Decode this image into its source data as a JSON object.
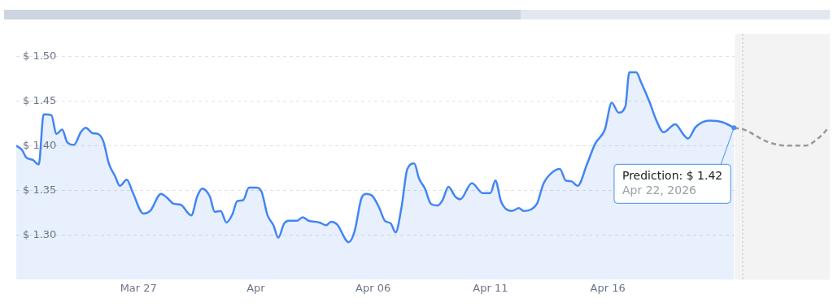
{
  "chart_data": {
    "type": "area",
    "xlim": [
      "2026-03-21T19:00",
      "2026-04-25T11:00"
    ],
    "xticks": [
      {
        "value": "2026-03-27",
        "label": "Mar 27"
      },
      {
        "value": "2026-04-01",
        "label": "Apr"
      },
      {
        "value": "2026-04-06",
        "label": "Apr 06"
      },
      {
        "value": "2026-04-11",
        "label": "Apr 11"
      },
      {
        "value": "2026-04-16",
        "label": "Apr 16"
      }
    ],
    "ylim": [
      1.25,
      1.525
    ],
    "yticks": [
      {
        "value": 1.3,
        "label": "$ 1.30"
      },
      {
        "value": 1.35,
        "label": "$ 1.35"
      },
      {
        "value": 1.4,
        "label": "$ 1.40"
      },
      {
        "value": 1.45,
        "label": "$ 1.45"
      },
      {
        "value": 1.5,
        "label": "$ 1.50"
      }
    ],
    "grid": "y",
    "legend": false,
    "marker": "none",
    "series": [
      {
        "color": "#4285f4",
        "x": [
          "2026-03-21T19:00",
          "2026-03-22T01:00",
          "2026-03-22T05:00",
          "2026-03-22T12:00",
          "2026-03-22T18:00",
          "2026-03-22T23:00",
          "2026-03-23T07:00",
          "2026-03-23T12:00",
          "2026-03-23T18:00",
          "2026-03-23T23:00",
          "2026-03-24T06:00",
          "2026-03-24T13:00",
          "2026-03-24T18:00",
          "2026-03-25T01:00",
          "2026-03-25T07:00",
          "2026-03-25T12:00",
          "2026-03-25T18:00",
          "2026-03-26T00:00",
          "2026-03-26T05:00",
          "2026-03-26T12:00",
          "2026-03-26T18:00",
          "2026-03-27T05:00",
          "2026-03-27T12:00",
          "2026-03-27T23:00",
          "2026-03-28T05:00",
          "2026-03-28T12:00",
          "2026-03-28T19:00",
          "2026-03-29T06:00",
          "2026-03-29T12:00",
          "2026-03-29T17:00",
          "2026-03-30T01:00",
          "2026-03-30T06:00",
          "2026-03-30T12:00",
          "2026-03-30T18:00",
          "2026-03-31T00:00",
          "2026-03-31T05:00",
          "2026-03-31T11:00",
          "2026-03-31T17:00",
          "2026-04-01T01:00",
          "2026-04-01T06:00",
          "2026-04-01T12:00",
          "2026-04-01T18:00",
          "2026-04-01T23:00",
          "2026-04-02T05:00",
          "2026-04-02T10:00",
          "2026-04-02T18:00",
          "2026-04-03T00:00",
          "2026-04-03T06:00",
          "2026-04-03T17:00",
          "2026-04-04T00:00",
          "2026-04-04T05:00",
          "2026-04-04T11:00",
          "2026-04-04T23:00",
          "2026-04-05T05:00",
          "2026-04-05T12:00",
          "2026-04-05T17:00",
          "2026-04-05T23:00",
          "2026-04-06T06:00",
          "2026-04-06T12:00",
          "2026-04-06T18:00",
          "2026-04-06T23:00",
          "2026-04-07T05:00",
          "2026-04-07T11:00",
          "2026-04-07T18:00",
          "2026-04-07T23:00",
          "2026-04-08T05:00",
          "2026-04-08T11:00",
          "2026-04-08T18:00",
          "2026-04-08T23:00",
          "2026-04-09T05:00",
          "2026-04-09T12:00",
          "2026-04-09T17:00",
          "2026-04-10T05:00",
          "2026-04-10T16:00",
          "2026-04-11T00:00",
          "2026-04-11T05:00",
          "2026-04-11T11:00",
          "2026-04-11T22:00",
          "2026-04-12T05:00",
          "2026-04-12T10:00",
          "2026-04-12T18:00",
          "2026-04-13T00:00",
          "2026-04-13T06:00",
          "2026-04-13T15:00",
          "2026-04-13T23:00",
          "2026-04-14T05:00",
          "2026-04-14T11:00",
          "2026-04-14T17:00",
          "2026-04-15T03:00",
          "2026-04-15T11:00",
          "2026-04-15T21:00",
          "2026-04-16T04:00",
          "2026-04-16T11:00",
          "2026-04-16T18:00",
          "2026-04-16T22:00",
          "2026-04-17T05:00",
          "2026-04-17T10:00",
          "2026-04-17T19:00",
          "2026-04-18T01:00",
          "2026-04-18T09:00",
          "2026-04-18T21:00",
          "2026-04-19T05:00",
          "2026-04-19T10:00",
          "2026-04-19T18:00",
          "2026-04-20T08:00",
          "2026-04-20T22:00",
          "2026-04-21T09:00"
        ],
        "values": [
          1.4,
          1.395,
          1.387,
          1.384,
          1.379,
          1.435,
          1.434,
          1.413,
          1.418,
          1.404,
          1.401,
          1.415,
          1.42,
          1.414,
          1.413,
          1.405,
          1.379,
          1.366,
          1.355,
          1.362,
          1.348,
          1.324,
          1.327,
          1.346,
          1.342,
          1.335,
          1.334,
          1.322,
          1.343,
          1.352,
          1.343,
          1.326,
          1.327,
          1.314,
          1.323,
          1.338,
          1.339,
          1.353,
          1.353,
          1.348,
          1.322,
          1.311,
          1.297,
          1.313,
          1.316,
          1.316,
          1.32,
          1.316,
          1.314,
          1.311,
          1.315,
          1.312,
          1.292,
          1.304,
          1.341,
          1.346,
          1.344,
          1.331,
          1.316,
          1.313,
          1.303,
          1.331,
          1.374,
          1.38,
          1.363,
          1.352,
          1.335,
          1.333,
          1.339,
          1.354,
          1.343,
          1.34,
          1.358,
          1.347,
          1.347,
          1.361,
          1.337,
          1.327,
          1.33,
          1.327,
          1.329,
          1.336,
          1.357,
          1.37,
          1.374,
          1.361,
          1.36,
          1.355,
          1.38,
          1.402,
          1.418,
          1.448,
          1.437,
          1.444,
          1.482,
          1.482,
          1.471,
          1.448,
          1.43,
          1.415,
          1.424,
          1.413,
          1.408,
          1.421,
          1.428,
          1.426,
          1.42
        ]
      },
      {
        "type": "line",
        "line_style": "dashed",
        "color": "#999999",
        "x": [
          "2026-04-21T09:00",
          "2026-04-21T19:00",
          "2026-04-22T20:00",
          "2026-04-23T16:00",
          "2026-04-24T10:00",
          "2026-04-25T00:00",
          "2026-04-25T09:00"
        ],
        "values": [
          1.42,
          1.418,
          1.404,
          1.4,
          1.4,
          1.409,
          1.419
        ]
      }
    ],
    "bands": [
      {
        "axis": "x",
        "from": "2026-04-21T10:00",
        "to": "2026-04-25T11:00",
        "color": "#f3f3f3"
      }
    ],
    "ref_lines": [
      {
        "axis": "x",
        "value": "2026-04-21T18:00",
        "line_style": "dotted",
        "color": "#cccccc"
      }
    ],
    "annotations": [
      {
        "text": "Prediction: $ 1.42\nApr 22, 2026",
        "x": "2026-04-21T09:00",
        "y": 1.42
      }
    ]
  }
}
